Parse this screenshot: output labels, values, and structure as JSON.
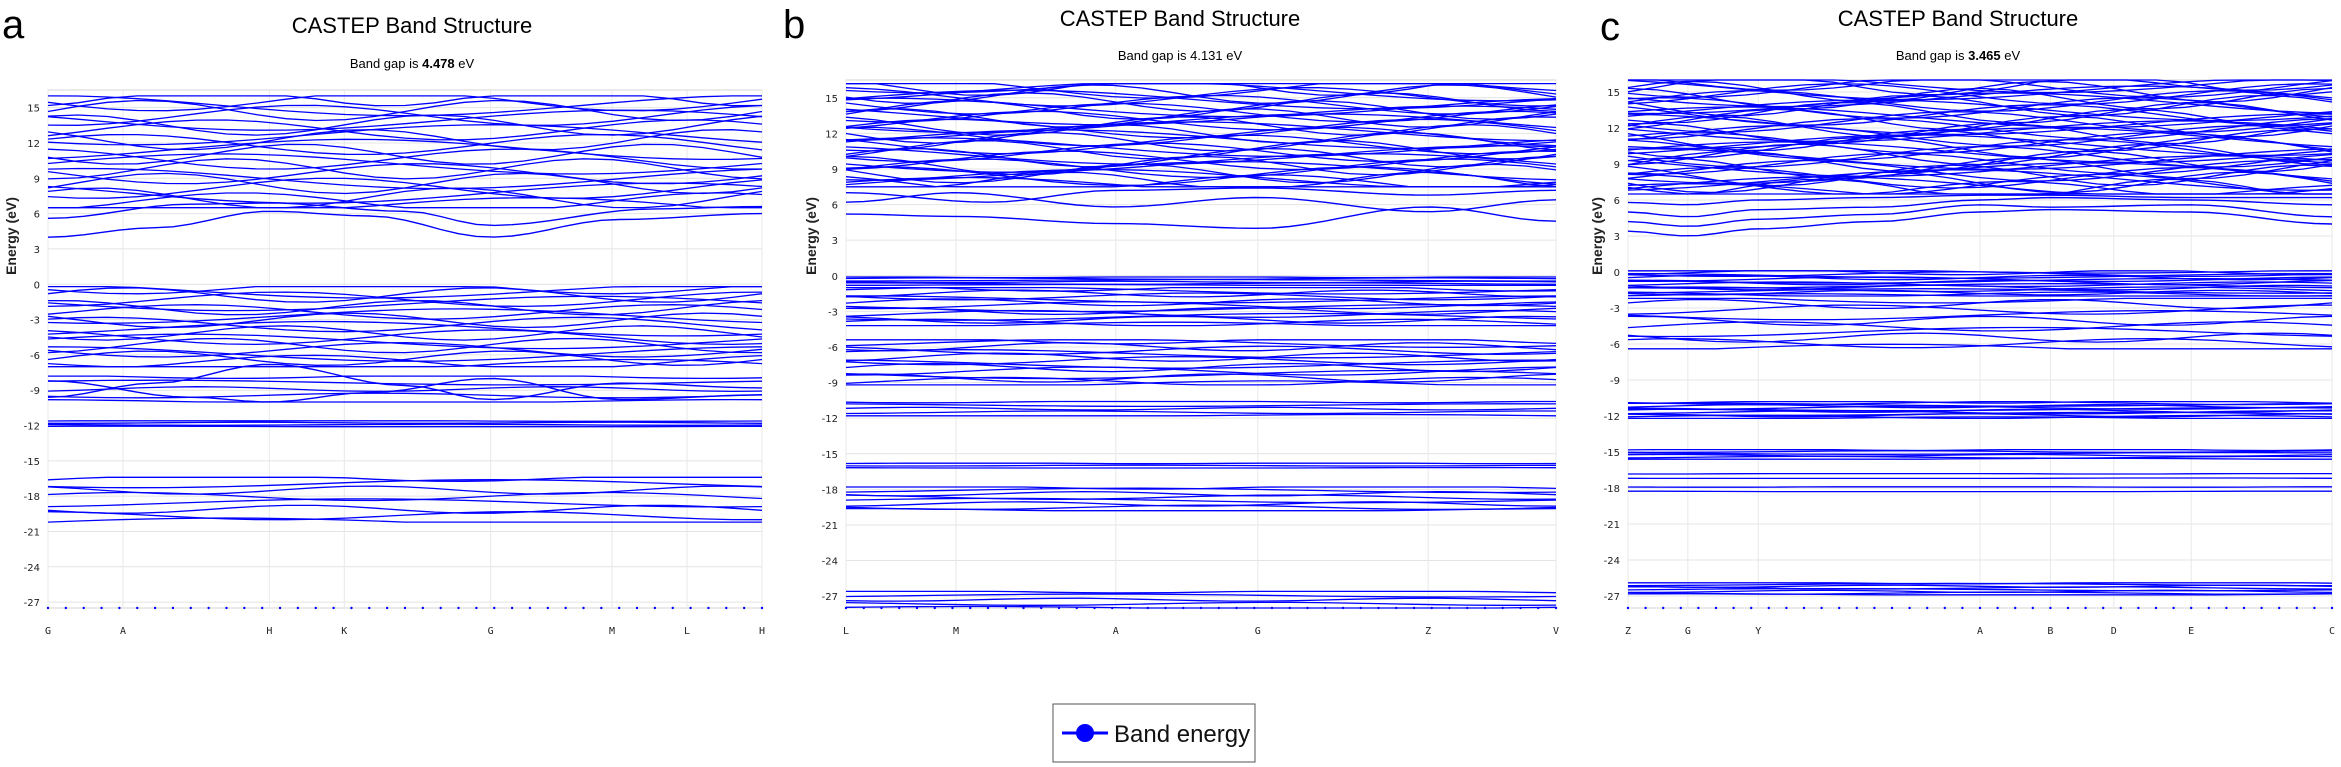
{
  "legend": {
    "label": "Band energy",
    "color": "#0000ff"
  },
  "chart_data": [
    {
      "type": "line",
      "panel": "a",
      "title": "CASTEP Band Structure",
      "subtitle_prefix": "Band gap is ",
      "subtitle_value": "4.478",
      "subtitle_unit": " eV",
      "ylabel": "Energy (eV)",
      "xlabel": "",
      "ylim": [
        -27.5,
        16.5
      ],
      "yticks": [
        15,
        12,
        9,
        6,
        3,
        0,
        -3,
        -6,
        -9,
        -12,
        -15,
        -18,
        -21,
        -24,
        -27
      ],
      "kpoints": [
        {
          "label": "G",
          "pos": 0.0
        },
        {
          "label": "A",
          "pos": 0.105
        },
        {
          "label": "H",
          "pos": 0.31
        },
        {
          "label": "K",
          "pos": 0.415
        },
        {
          "label": "G",
          "pos": 0.62
        },
        {
          "label": "M",
          "pos": 0.79
        },
        {
          "label": "L",
          "pos": 0.895
        },
        {
          "label": "H",
          "pos": 1.0
        }
      ],
      "band_groups": [
        {
          "range": [
            -20.2,
            -16.4
          ],
          "count": 8
        },
        {
          "range": [
            -12.1,
            -11.6
          ],
          "count": 4
        },
        {
          "range": [
            -10.0,
            -7.8
          ],
          "count": 5
        },
        {
          "range": [
            -7.0,
            -0.2
          ],
          "count": 20
        },
        {
          "range": [
            6.5,
            16.0
          ],
          "count": 24
        }
      ],
      "special_bands": [
        {
          "x": [
            0,
            0.15,
            0.31,
            0.45,
            0.62,
            0.8,
            1.0
          ],
          "y": [
            4.0,
            4.8,
            6.2,
            5.8,
            4.0,
            5.5,
            6.0
          ]
        },
        {
          "x": [
            0,
            0.2,
            0.31,
            0.5,
            0.62,
            0.85,
            1.0
          ],
          "y": [
            5.6,
            6.8,
            6.9,
            6.2,
            5.0,
            6.4,
            6.6
          ]
        },
        {
          "x": [
            0,
            0.15,
            0.31,
            0.5,
            0.62,
            0.8,
            1.0
          ],
          "y": [
            -9.6,
            -8.4,
            -6.8,
            -8.6,
            -9.8,
            -8.4,
            -8.8
          ]
        },
        {
          "x": [
            0,
            0.2,
            0.31,
            0.45,
            0.62,
            0.8,
            1.0
          ],
          "y": [
            -8.2,
            -9.6,
            -10.0,
            -9.2,
            -8.0,
            -9.8,
            -9.4
          ]
        }
      ]
    },
    {
      "type": "line",
      "panel": "b",
      "title": "CASTEP Band Structure",
      "subtitle_prefix": "Band gap is ",
      "subtitle_value": "4.131",
      "subtitle_unit": " eV",
      "ylabel": "Energy (eV)",
      "xlabel": "",
      "ylim": [
        -28,
        16.5
      ],
      "yticks": [
        15,
        12,
        9,
        6,
        3,
        0,
        -3,
        -6,
        -9,
        -12,
        -15,
        -18,
        -21,
        -24,
        -27
      ],
      "kpoints": [
        {
          "label": "L",
          "pos": 0.0
        },
        {
          "label": "M",
          "pos": 0.155
        },
        {
          "label": "A",
          "pos": 0.38
        },
        {
          "label": "G",
          "pos": 0.58
        },
        {
          "label": "Z",
          "pos": 0.82
        },
        {
          "label": "V",
          "pos": 1.0
        }
      ],
      "band_groups": [
        {
          "range": [
            -28.0,
            -26.6
          ],
          "count": 5
        },
        {
          "range": [
            -19.8,
            -17.8
          ],
          "count": 8
        },
        {
          "range": [
            -16.2,
            -15.8
          ],
          "count": 3
        },
        {
          "range": [
            -11.8,
            -10.6
          ],
          "count": 5
        },
        {
          "range": [
            -9.2,
            -5.4
          ],
          "count": 14
        },
        {
          "range": [
            -4.2,
            -1.0
          ],
          "count": 14
        },
        {
          "range": [
            -0.8,
            -0.1
          ],
          "count": 6
        },
        {
          "range": [
            7.5,
            16.2
          ],
          "count": 40
        }
      ],
      "special_bands": [
        {
          "x": [
            0,
            0.155,
            0.38,
            0.58,
            0.82,
            1.0
          ],
          "y": [
            5.2,
            5.0,
            4.4,
            4.0,
            5.8,
            4.6
          ]
        },
        {
          "x": [
            0,
            0.155,
            0.38,
            0.58,
            0.82,
            1.0
          ],
          "y": [
            6.2,
            7.0,
            5.8,
            6.6,
            5.4,
            6.4
          ]
        },
        {
          "x": [
            0,
            0.2,
            0.38,
            0.58,
            0.82,
            1.0
          ],
          "y": [
            7.0,
            6.2,
            7.2,
            7.4,
            6.8,
            7.2
          ]
        }
      ]
    },
    {
      "type": "line",
      "panel": "c",
      "title": "CASTEP Band Structure",
      "subtitle_prefix": "Band gap is ",
      "subtitle_value": "3.465",
      "subtitle_unit": " eV",
      "ylabel": "Energy (eV)",
      "xlabel": "",
      "ylim": [
        -28,
        16
      ],
      "yticks": [
        15,
        12,
        9,
        6,
        3,
        0,
        -3,
        -6,
        -9,
        -12,
        -15,
        -18,
        -21,
        -24,
        -27
      ],
      "kpoints": [
        {
          "label": "Z",
          "pos": 0.0
        },
        {
          "label": "G",
          "pos": 0.085
        },
        {
          "label": "Y",
          "pos": 0.185
        },
        {
          "label": "A",
          "pos": 0.5
        },
        {
          "label": "B",
          "pos": 0.6
        },
        {
          "label": "D",
          "pos": 0.69
        },
        {
          "label": "E",
          "pos": 0.8
        },
        {
          "label": "C",
          "pos": 1.0
        }
      ],
      "band_groups": [
        {
          "range": [
            -26.9,
            -25.9
          ],
          "count": 8
        },
        {
          "range": [
            -18.3,
            -17.9
          ],
          "count": 2
        },
        {
          "range": [
            -17.2,
            -16.8
          ],
          "count": 2
        },
        {
          "range": [
            -15.6,
            -14.8
          ],
          "count": 6
        },
        {
          "range": [
            -12.2,
            -10.8
          ],
          "count": 12
        },
        {
          "range": [
            -6.4,
            -2.2
          ],
          "count": 10
        },
        {
          "range": [
            -2.0,
            0.1
          ],
          "count": 16
        },
        {
          "range": [
            6.5,
            16.0
          ],
          "count": 50
        }
      ],
      "special_bands": [
        {
          "x": [
            0,
            0.085,
            0.185,
            0.35,
            0.5,
            0.6,
            0.8,
            1.0
          ],
          "y": [
            3.4,
            3.0,
            3.6,
            4.2,
            5.0,
            5.2,
            5.0,
            4.0
          ]
        },
        {
          "x": [
            0,
            0.085,
            0.185,
            0.35,
            0.5,
            0.6,
            0.8,
            1.0
          ],
          "y": [
            4.2,
            3.8,
            4.4,
            4.8,
            5.6,
            5.4,
            5.6,
            4.6
          ]
        },
        {
          "x": [
            0,
            0.085,
            0.185,
            0.35,
            0.5,
            0.6,
            0.8,
            1.0
          ],
          "y": [
            5.0,
            4.6,
            5.2,
            5.4,
            6.0,
            6.2,
            6.0,
            5.6
          ]
        },
        {
          "x": [
            0,
            0.085,
            0.185,
            0.35,
            0.5,
            0.6,
            0.8,
            1.0
          ],
          "y": [
            5.8,
            5.6,
            6.0,
            6.2,
            6.4,
            6.4,
            6.2,
            6.2
          ]
        }
      ]
    }
  ]
}
